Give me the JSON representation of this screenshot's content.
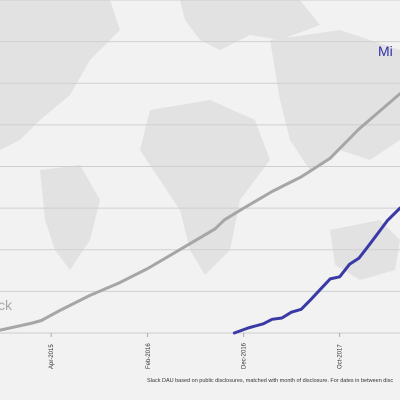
{
  "chart_data": {
    "type": "line",
    "xlim": [
      "2014-10-21",
      "2018-04-10"
    ],
    "ylim": [
      0,
      8
    ],
    "grid": true,
    "x_ticks": [
      {
        "date": "2015-04-01",
        "label": "Apr-2015"
      },
      {
        "date": "2016-02-01",
        "label": "Feb-2016"
      },
      {
        "date": "2016-12-01",
        "label": "Dec-2016"
      },
      {
        "date": "2017-10-01",
        "label": "Oct-2017"
      }
    ],
    "series": [
      {
        "name": "Slack",
        "label_text": "ck",
        "color": "#a6a6a6",
        "label_color": "#a6a6a6",
        "points": [
          {
            "x": "2014-10-21",
            "y": 0.07
          },
          {
            "x": "2015-02-01",
            "y": 0.24
          },
          {
            "x": "2015-03-01",
            "y": 0.3
          },
          {
            "x": "2015-05-01",
            "y": 0.55
          },
          {
            "x": "2015-08-01",
            "y": 0.9
          },
          {
            "x": "2015-11-01",
            "y": 1.2
          },
          {
            "x": "2016-02-01",
            "y": 1.55
          },
          {
            "x": "2016-05-01",
            "y": 1.95
          },
          {
            "x": "2016-09-01",
            "y": 2.5
          },
          {
            "x": "2016-10-01",
            "y": 2.72
          },
          {
            "x": "2016-12-01",
            "y": 3.0
          },
          {
            "x": "2017-03-01",
            "y": 3.4
          },
          {
            "x": "2017-06-01",
            "y": 3.75
          },
          {
            "x": "2017-09-01",
            "y": 4.2
          },
          {
            "x": "2017-12-01",
            "y": 4.9
          },
          {
            "x": "2018-04-10",
            "y": 5.75
          }
        ]
      },
      {
        "name": "Microsoft Teams",
        "label_text": "Mi",
        "color": "#3a3aa6",
        "label_color": "#2e2ea8",
        "points": [
          {
            "x": "2016-11-01",
            "y": 0.0
          },
          {
            "x": "2016-12-15",
            "y": 0.12
          },
          {
            "x": "2017-02-01",
            "y": 0.22
          },
          {
            "x": "2017-03-01",
            "y": 0.33
          },
          {
            "x": "2017-04-01",
            "y": 0.36
          },
          {
            "x": "2017-05-01",
            "y": 0.5
          },
          {
            "x": "2017-06-01",
            "y": 0.57
          },
          {
            "x": "2017-07-01",
            "y": 0.8
          },
          {
            "x": "2017-08-01",
            "y": 1.05
          },
          {
            "x": "2017-09-01",
            "y": 1.3
          },
          {
            "x": "2017-10-01",
            "y": 1.35
          },
          {
            "x": "2017-11-01",
            "y": 1.65
          },
          {
            "x": "2017-12-01",
            "y": 1.8
          },
          {
            "x": "2018-01-01",
            "y": 2.1
          },
          {
            "x": "2018-03-01",
            "y": 2.7
          },
          {
            "x": "2018-04-10",
            "y": 3.0
          }
        ]
      }
    ],
    "footnote": "Slack DAU based on public disclosures, matched with month of disclosure. For dates in between disc"
  }
}
